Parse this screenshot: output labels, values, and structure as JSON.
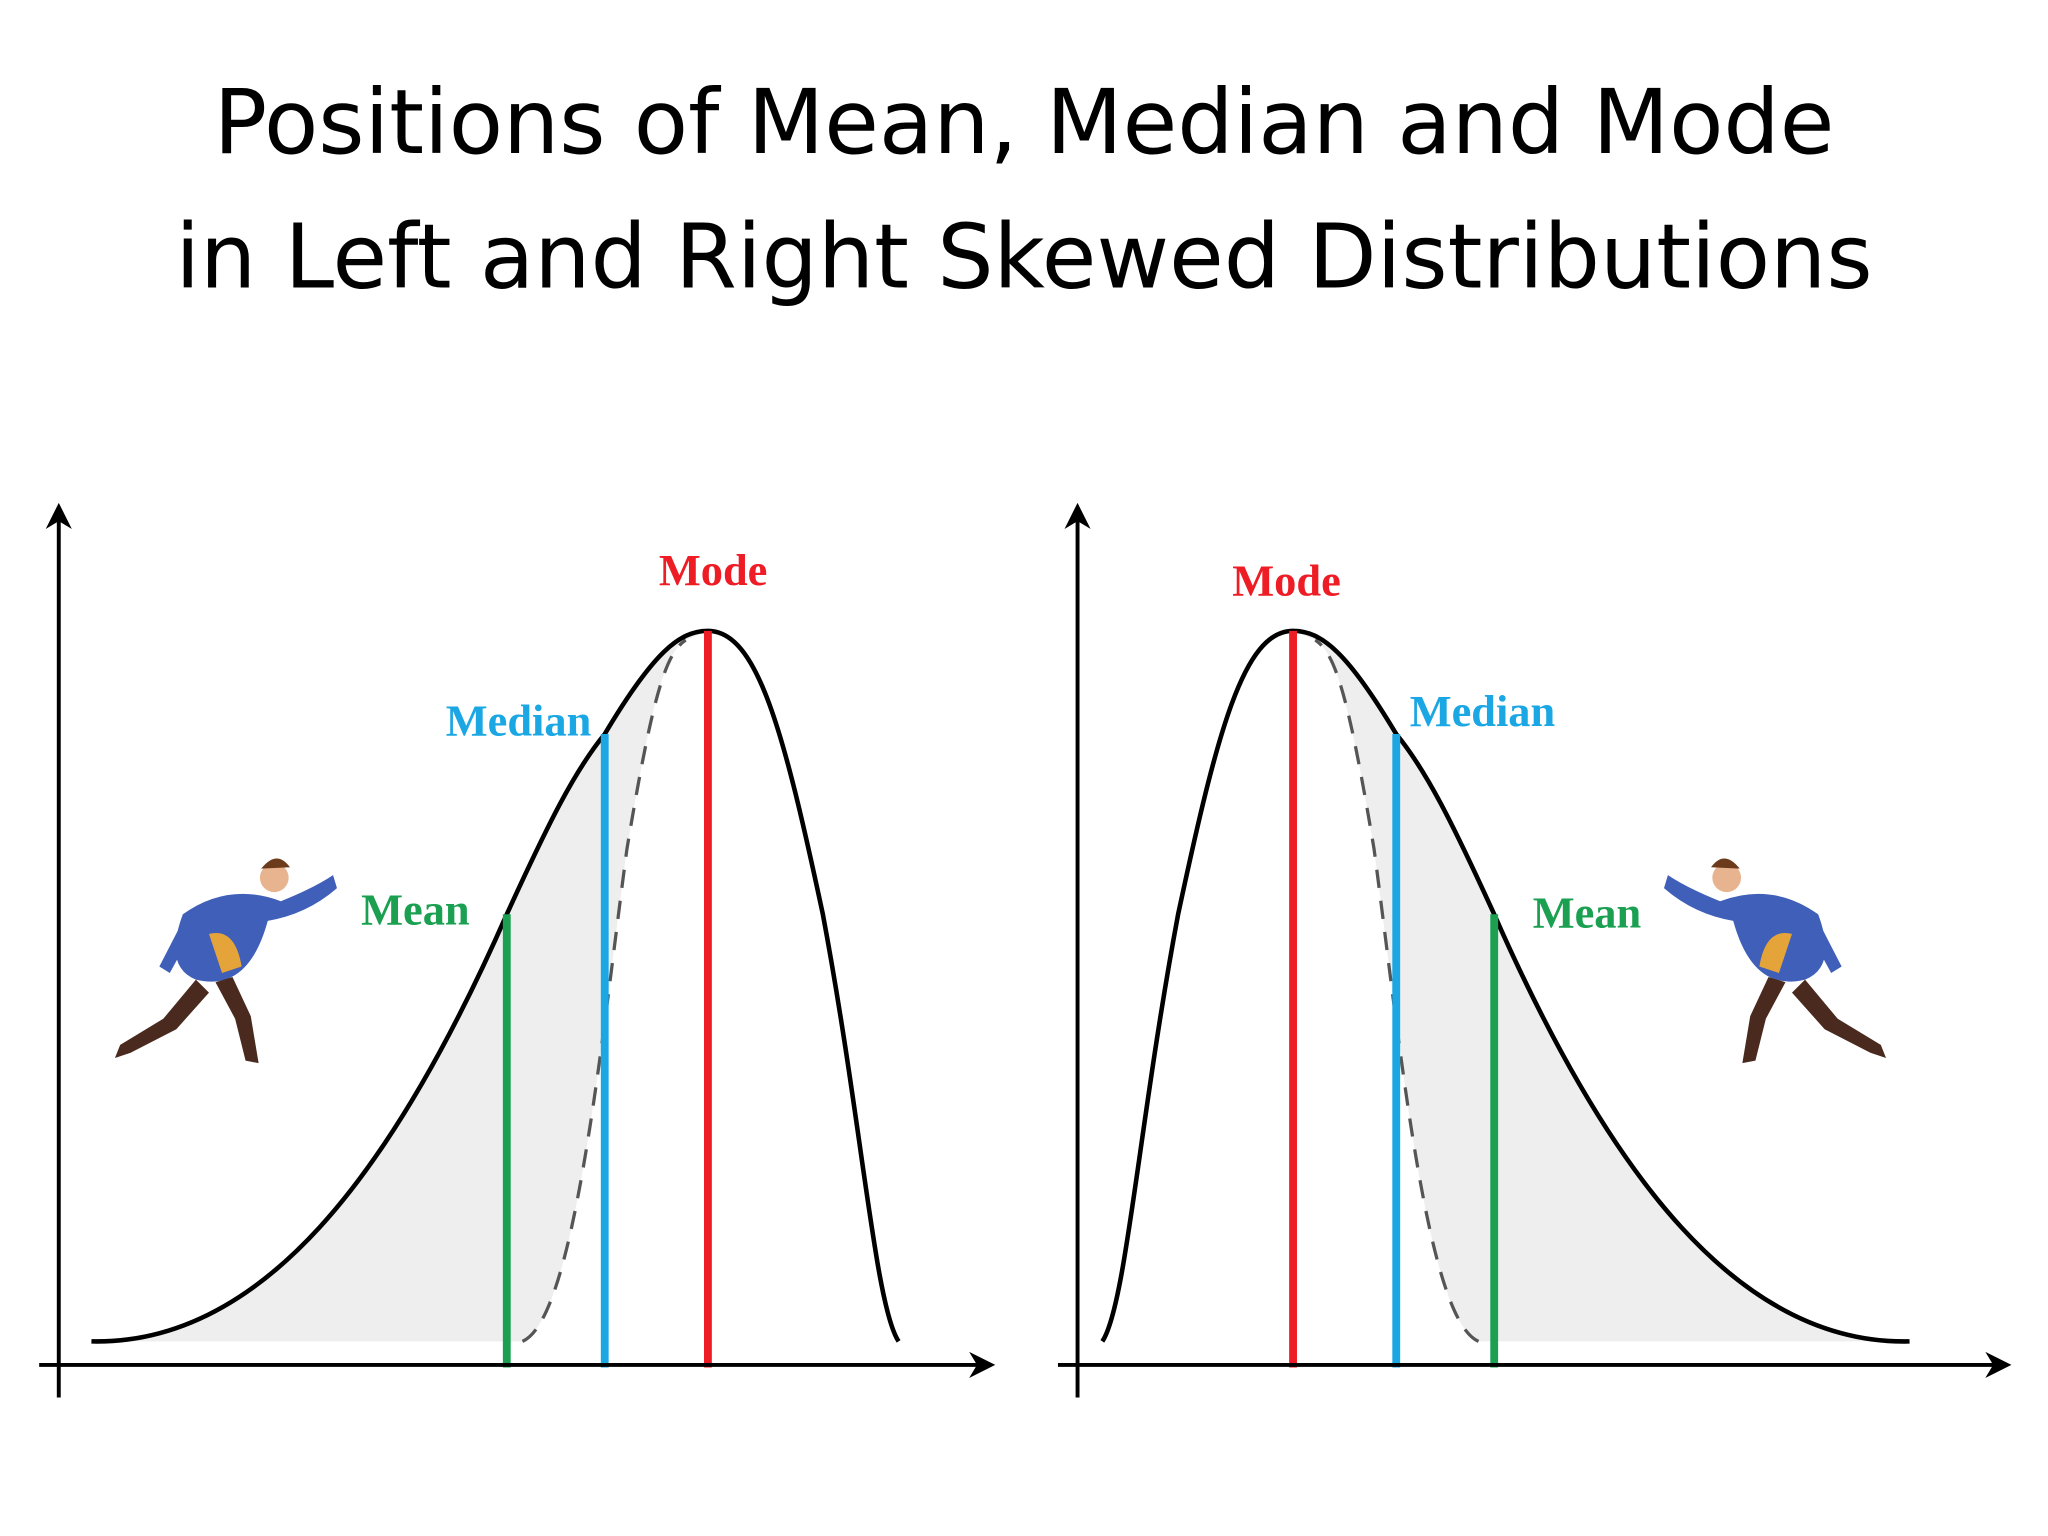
{
  "title": [
    "Positions of Mean, Median and Mode",
    "in Left and Right Skewed Distributions"
  ],
  "panels": [
    {
      "mode": "Mode",
      "median": "Median",
      "mean": "Mean"
    },
    {
      "mode": "Mode",
      "median": "Median",
      "mean": "Mean"
    }
  ]
}
